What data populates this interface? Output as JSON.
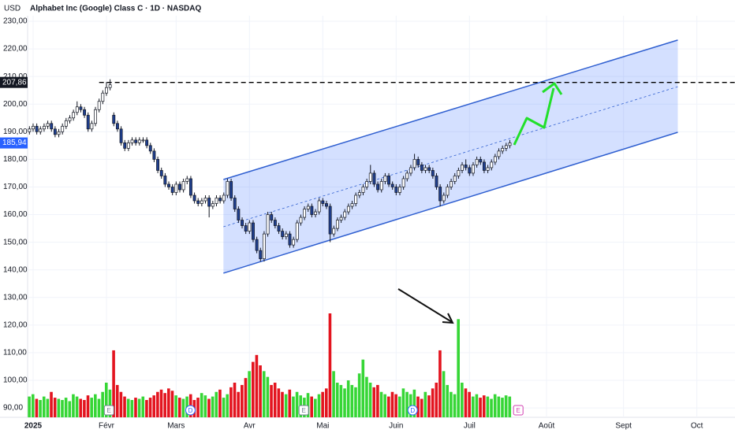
{
  "chart_data": {
    "type": "candlestick",
    "title": "Alphabet Inc (Google) Class C · 1D · NASDAQ",
    "currency": "USD",
    "x": [
      0,
      1,
      2,
      3,
      4,
      5,
      6,
      7,
      8,
      9,
      10,
      11,
      12,
      13,
      14,
      15,
      16,
      17,
      18,
      19,
      20,
      21,
      22,
      23,
      24,
      25,
      26,
      27,
      28,
      29,
      30,
      31,
      32,
      33,
      34,
      35,
      36,
      37,
      38,
      39,
      40,
      41,
      42,
      43,
      44,
      45,
      46,
      47,
      48,
      49,
      50,
      51,
      52,
      53,
      54,
      55,
      56,
      57,
      58,
      59,
      60,
      61,
      62,
      63,
      64,
      65,
      66,
      67,
      68,
      69,
      70,
      71,
      72,
      73,
      74,
      75,
      76,
      77,
      78,
      79,
      80,
      81,
      82,
      83,
      84,
      85,
      86,
      87,
      88,
      89,
      90,
      91,
      92,
      93,
      94,
      95,
      96,
      97,
      98,
      99,
      100,
      101,
      102,
      103,
      104,
      105,
      106,
      107,
      108,
      109,
      110,
      111,
      112,
      113,
      114,
      115,
      116,
      117,
      118,
      119,
      120,
      121,
      122,
      123,
      124,
      125,
      126,
      127,
      128,
      129,
      130,
      131
    ],
    "open": [
      190,
      191,
      192,
      190,
      191,
      192,
      193,
      191,
      189,
      190,
      192,
      194,
      195,
      197,
      199,
      198,
      196,
      191,
      193,
      198,
      201,
      204,
      206,
      196,
      193,
      191,
      186,
      184,
      186,
      187,
      186,
      187,
      187,
      185,
      183,
      180,
      176,
      174,
      171,
      170,
      168,
      171,
      169,
      172,
      173,
      167,
      165,
      164,
      165,
      166,
      163,
      164,
      166,
      165,
      167,
      172,
      166,
      162,
      158,
      156,
      154,
      157,
      151,
      147,
      144,
      153,
      160,
      158,
      156,
      154,
      152,
      153,
      149,
      151,
      157,
      159,
      162,
      163,
      160,
      161,
      165,
      164,
      163,
      153,
      155,
      158,
      159,
      161,
      163,
      164,
      167,
      168,
      170,
      172,
      175,
      171,
      169,
      172,
      174,
      171,
      170,
      168,
      170,
      173,
      175,
      177,
      180,
      178,
      176,
      177,
      176,
      174,
      170,
      165,
      167,
      170,
      172,
      174,
      176,
      178,
      177,
      175,
      178,
      180,
      179,
      176,
      177,
      179,
      181,
      183,
      184,
      185
    ],
    "high": [
      192,
      193,
      193,
      192,
      193,
      194,
      194,
      192,
      191,
      193,
      195,
      196,
      198,
      201,
      200,
      199,
      197,
      194,
      199,
      202,
      205,
      208,
      209,
      197,
      194,
      192,
      187,
      187,
      188,
      188,
      188,
      188,
      188,
      186,
      184,
      181,
      177,
      175,
      172,
      171,
      172,
      172,
      173,
      174,
      174,
      168,
      166,
      166,
      167,
      167,
      165,
      167,
      167,
      168,
      173,
      173,
      167,
      163,
      159,
      157,
      158,
      158,
      152,
      148,
      154,
      161,
      161,
      159,
      157,
      155,
      154,
      154,
      152,
      158,
      160,
      163,
      164,
      164,
      162,
      166,
      166,
      165,
      164,
      156,
      159,
      160,
      162,
      164,
      165,
      168,
      169,
      171,
      173,
      178,
      176,
      172,
      173,
      175,
      175,
      172,
      171,
      171,
      174,
      176,
      178,
      182,
      181,
      179,
      178,
      178,
      177,
      175,
      171,
      168,
      171,
      173,
      175,
      177,
      179,
      180,
      178,
      179,
      181,
      181,
      180,
      178,
      180,
      182,
      184,
      185,
      186,
      187
    ],
    "low": [
      189,
      190,
      189,
      189,
      190,
      191,
      190,
      188,
      188,
      189,
      191,
      193,
      194,
      196,
      197,
      195,
      190,
      190,
      192,
      197,
      200,
      203,
      205,
      192,
      190,
      185,
      183,
      183,
      185,
      185,
      185,
      186,
      184,
      182,
      179,
      175,
      173,
      170,
      169,
      167,
      167,
      168,
      168,
      171,
      166,
      164,
      163,
      163,
      164,
      159,
      162,
      163,
      164,
      164,
      166,
      165,
      161,
      157,
      155,
      153,
      153,
      150,
      146,
      143,
      143,
      152,
      157,
      155,
      153,
      151,
      151,
      148,
      148,
      150,
      156,
      158,
      161,
      159,
      159,
      160,
      163,
      162,
      150,
      152,
      154,
      157,
      158,
      160,
      162,
      163,
      166,
      167,
      169,
      171,
      170,
      168,
      168,
      171,
      170,
      169,
      167,
      167,
      169,
      172,
      174,
      176,
      177,
      175,
      175,
      175,
      173,
      169,
      163,
      164,
      166,
      169,
      171,
      173,
      175,
      176,
      174,
      174,
      177,
      178,
      175,
      175,
      176,
      178,
      180,
      182,
      183,
      184
    ],
    "close": [
      191,
      192,
      190,
      191,
      192,
      193,
      191,
      189,
      190,
      192,
      194,
      195,
      197,
      199,
      198,
      196,
      191,
      193,
      198,
      201,
      204,
      206,
      207,
      193,
      191,
      186,
      184,
      186,
      187,
      186,
      187,
      187,
      185,
      183,
      180,
      176,
      174,
      171,
      170,
      168,
      171,
      169,
      172,
      173,
      167,
      165,
      164,
      165,
      166,
      163,
      164,
      166,
      165,
      167,
      172,
      166,
      162,
      158,
      156,
      154,
      157,
      151,
      147,
      144,
      153,
      160,
      158,
      156,
      154,
      152,
      153,
      149,
      151,
      157,
      159,
      162,
      163,
      160,
      161,
      165,
      164,
      163,
      153,
      155,
      158,
      159,
      161,
      163,
      164,
      167,
      168,
      170,
      172,
      175,
      171,
      169,
      172,
      174,
      171,
      170,
      168,
      170,
      173,
      175,
      177,
      180,
      178,
      176,
      177,
      176,
      174,
      170,
      165,
      167,
      170,
      172,
      174,
      176,
      178,
      177,
      175,
      178,
      180,
      179,
      176,
      177,
      179,
      181,
      183,
      184,
      185,
      185.94
    ],
    "volume": [
      18,
      20,
      16,
      15,
      18,
      16,
      22,
      17,
      16,
      15,
      17,
      14,
      20,
      18,
      16,
      15,
      19,
      17,
      20,
      16,
      22,
      30,
      24,
      58,
      28,
      22,
      18,
      16,
      15,
      17,
      16,
      18,
      15,
      17,
      19,
      22,
      24,
      21,
      25,
      23,
      19,
      17,
      16,
      18,
      20,
      15,
      17,
      21,
      19,
      16,
      18,
      22,
      24,
      17,
      20,
      26,
      30,
      22,
      28,
      34,
      40,
      48,
      54,
      45,
      40,
      35,
      28,
      30,
      25,
      22,
      20,
      24,
      18,
      22,
      19,
      17,
      21,
      18,
      16,
      20,
      22,
      25,
      90,
      40,
      30,
      28,
      25,
      32,
      28,
      26,
      38,
      50,
      35,
      30,
      26,
      28,
      22,
      20,
      18,
      22,
      20,
      18,
      25,
      22,
      20,
      24,
      18,
      16,
      22,
      19,
      25,
      30,
      58,
      40,
      28,
      22,
      20,
      85,
      30,
      25,
      22,
      18,
      20,
      17,
      19,
      18,
      16,
      20,
      18,
      17,
      19,
      18
    ],
    "up_color": "#ffffff",
    "down_color": "#1f3f8f",
    "volume_up_color": "#36d636",
    "volume_down_color": "#e3141f",
    "xlim": [
      -0.5,
      192.4
    ],
    "xticks": [
      {
        "value": 1,
        "label": "2025"
      },
      {
        "value": 21,
        "label": "Févr"
      },
      {
        "value": 40,
        "label": "Mars"
      },
      {
        "value": 60,
        "label": "Avr"
      },
      {
        "value": 80,
        "label": "Mai"
      },
      {
        "value": 100,
        "label": "Juin"
      },
      {
        "value": 120,
        "label": "Juil"
      },
      {
        "value": 141,
        "label": "Août"
      },
      {
        "value": 162,
        "label": "Sept"
      },
      {
        "value": 182,
        "label": "Oct"
      }
    ],
    "ylim": [
      86.6,
      232
    ],
    "yticks": [
      {
        "value": 90,
        "label": "90,00"
      },
      {
        "value": 100,
        "label": "100,00"
      },
      {
        "value": 110,
        "label": "110,00"
      },
      {
        "value": 120,
        "label": "120,00"
      },
      {
        "value": 130,
        "label": "130,00"
      },
      {
        "value": 140,
        "label": "140,00"
      },
      {
        "value": 150,
        "label": "150,00"
      },
      {
        "value": 160,
        "label": "160,00"
      },
      {
        "value": 170,
        "label": "170,00"
      },
      {
        "value": 180,
        "label": "180,00"
      },
      {
        "value": 190,
        "label": "190,00"
      },
      {
        "value": 200,
        "label": "200,00"
      },
      {
        "value": 210,
        "label": "210,00"
      },
      {
        "value": 220,
        "label": "220,00"
      },
      {
        "value": 230,
        "label": "230,00"
      }
    ],
    "grid": true,
    "last_price": {
      "value": 185.94,
      "label": "185,94",
      "color": "#2962ff"
    },
    "level": {
      "value": 207.86,
      "label": "207,86",
      "from_x": 19
    },
    "channel": {
      "x": [
        52.9,
        176.8
      ],
      "upper": [
        172.7,
        223.2
      ],
      "lower": [
        138.8,
        189.8
      ],
      "middle": [
        155.6,
        206.3
      ],
      "color": "#2f5fd0"
    },
    "events": [
      {
        "label": "E",
        "x": 21.7,
        "color": "#6f7c91"
      },
      {
        "label": "D",
        "x": 43.9,
        "color": "#2962ff"
      },
      {
        "label": "E",
        "x": 74.8,
        "color": "#6f7c91"
      },
      {
        "label": "D",
        "x": 104.5,
        "color": "#2962ff"
      },
      {
        "label": "E",
        "x": 133.3,
        "color": "#d23fb2"
      }
    ]
  }
}
